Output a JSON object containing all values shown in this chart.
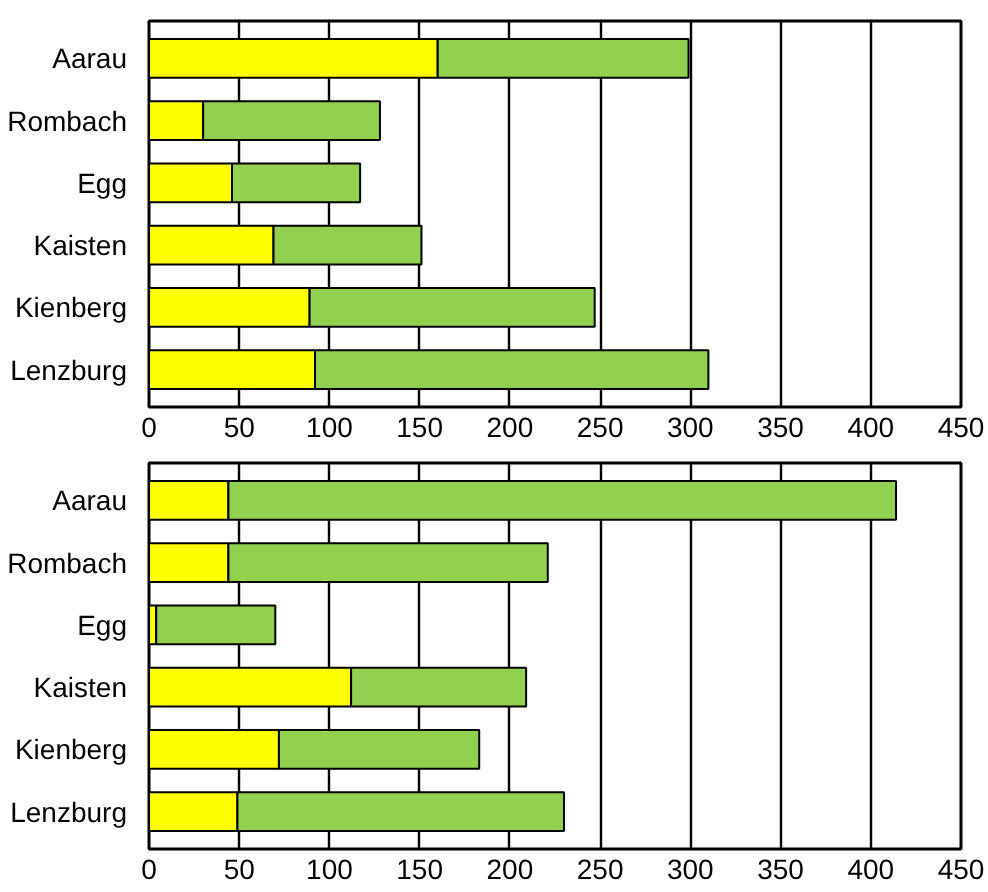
{
  "chart_data": [
    {
      "type": "bar",
      "orientation": "horizontal",
      "stacked": true,
      "categories": [
        "Aarau",
        "Rombach",
        "Egg",
        "Kaisten",
        "Kienberg",
        "Lenzburg"
      ],
      "series": [
        {
          "color": "#ffff00",
          "values": [
            160,
            30,
            46,
            69,
            89,
            92
          ]
        },
        {
          "color": "#92d050",
          "values": [
            139,
            98,
            71,
            82,
            158,
            218
          ]
        }
      ],
      "xlim": [
        0,
        450
      ],
      "xticks": [
        0,
        50,
        100,
        150,
        200,
        250,
        300,
        350,
        400,
        450
      ],
      "grid": "x"
    },
    {
      "type": "bar",
      "orientation": "horizontal",
      "stacked": true,
      "categories": [
        "Aarau",
        "Rombach",
        "Egg",
        "Kaisten",
        "Kienberg",
        "Lenzburg"
      ],
      "series": [
        {
          "color": "#ffff00",
          "values": [
            44,
            44,
            4,
            112,
            72,
            49
          ]
        },
        {
          "color": "#92d050",
          "values": [
            370,
            177,
            66,
            97,
            111,
            181
          ]
        }
      ],
      "xlim": [
        0,
        450
      ],
      "xticks": [
        0,
        50,
        100,
        150,
        200,
        250,
        300,
        350,
        400,
        450
      ],
      "grid": "x"
    }
  ]
}
